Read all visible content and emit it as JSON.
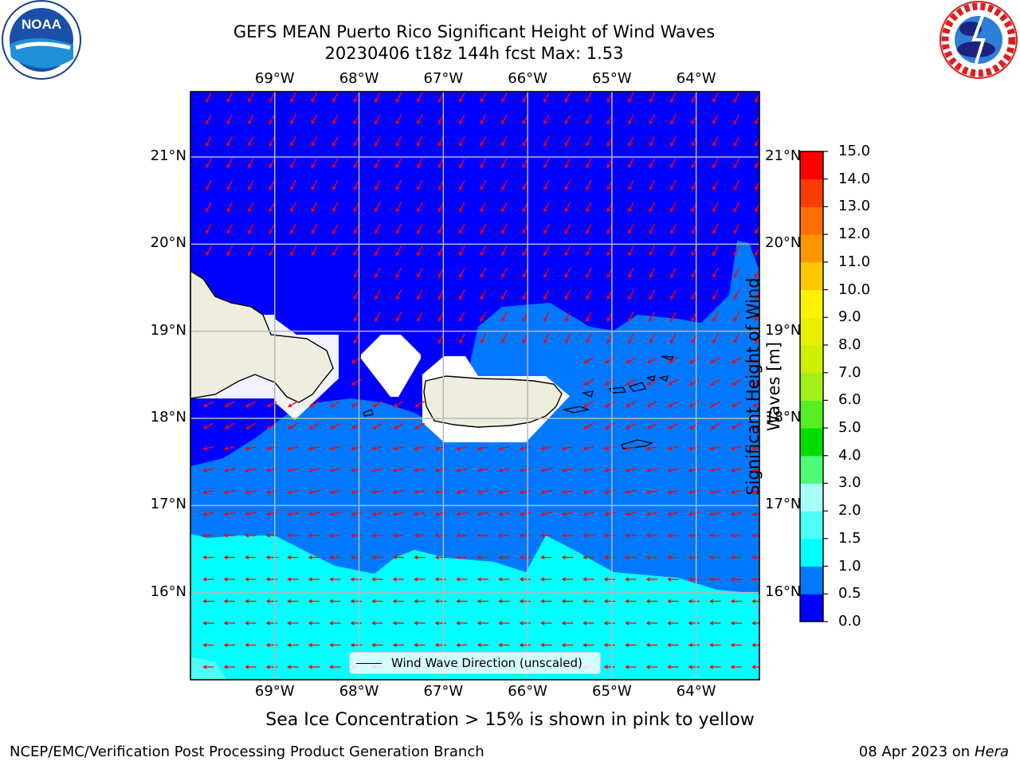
{
  "title": {
    "line1": "GEFS MEAN Puerto Rico Significant Height of Wind Waves",
    "line2": "20230406 t18z 144h fcst   Max: 1.53"
  },
  "logos": {
    "left": {
      "name": "noaa-logo",
      "text": "NOAA",
      "ring_text": "NATIONAL OCEANIC AND ATMOSPHERIC ADMINISTRATION · U.S. DEPARTMENT OF COMMERCE"
    },
    "right": {
      "name": "nws-logo",
      "ring_text": "NATIONAL WEATHER SERVICE"
    }
  },
  "map": {
    "region": "Puerto Rico",
    "lon_range": [
      -70.0,
      -63.25
    ],
    "lat_range": [
      15.0,
      21.75
    ],
    "lon_ticks": [
      {
        "value": -69,
        "label": "69°W"
      },
      {
        "value": -68,
        "label": "68°W"
      },
      {
        "value": -67,
        "label": "67°W"
      },
      {
        "value": -66,
        "label": "66°W"
      },
      {
        "value": -65,
        "label": "65°W"
      },
      {
        "value": -64,
        "label": "64°W"
      }
    ],
    "lat_ticks": [
      {
        "value": 21,
        "label": "21°N"
      },
      {
        "value": 20,
        "label": "20°N"
      },
      {
        "value": 19,
        "label": "19°N"
      },
      {
        "value": 18,
        "label": "18°N"
      },
      {
        "value": 17,
        "label": "17°N"
      },
      {
        "value": 16,
        "label": "16°N"
      }
    ],
    "land_color": "#efedde",
    "grid_color": "#b8b8b8",
    "arrow_color": "#ff0000"
  },
  "colorbar": {
    "title_line1": "Significant Height of Wind",
    "title_line2": "Waves [m]",
    "ticks": [
      "0.0",
      "0.5",
      "1.0",
      "1.5",
      "2.0",
      "3.0",
      "4.0",
      "5.0",
      "6.0",
      "7.0",
      "8.0",
      "9.0",
      "10.0",
      "11.0",
      "12.0",
      "13.0",
      "14.0",
      "15.0"
    ],
    "colors": [
      "#0000ff",
      "#0078ff",
      "#00ffff",
      "#4dfff7",
      "#a6fff7",
      "#4dfb77",
      "#00dd00",
      "#55ee22",
      "#a2f018",
      "#ccf000",
      "#e8f000",
      "#fff000",
      "#ffc800",
      "#ff9600",
      "#ff6e00",
      "#ff3c00",
      "#ff0000"
    ]
  },
  "legend": {
    "label": "Wind Wave Direction (unscaled)"
  },
  "subtitle": "Sea Ice Concentration > 15% is shown in pink to yellow",
  "footer": {
    "left": "NCEP/EMC/Verification Post Processing Product Generation Branch",
    "right_date": "08 Apr 2023 on ",
    "right_host": "Hera"
  }
}
